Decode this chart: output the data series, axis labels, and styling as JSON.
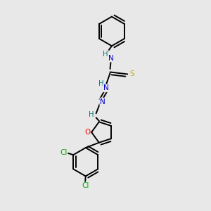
{
  "bg_color": "#e8e8e8",
  "bond_color": "#000000",
  "bond_width": 1.4,
  "atom_colors": {
    "C": "#000000",
    "N": "#0000cd",
    "H": "#008080",
    "S": "#ccaa00",
    "O": "#ff0000",
    "Cl": "#00aa00"
  },
  "figsize": [
    3.0,
    3.0
  ],
  "dpi": 100
}
